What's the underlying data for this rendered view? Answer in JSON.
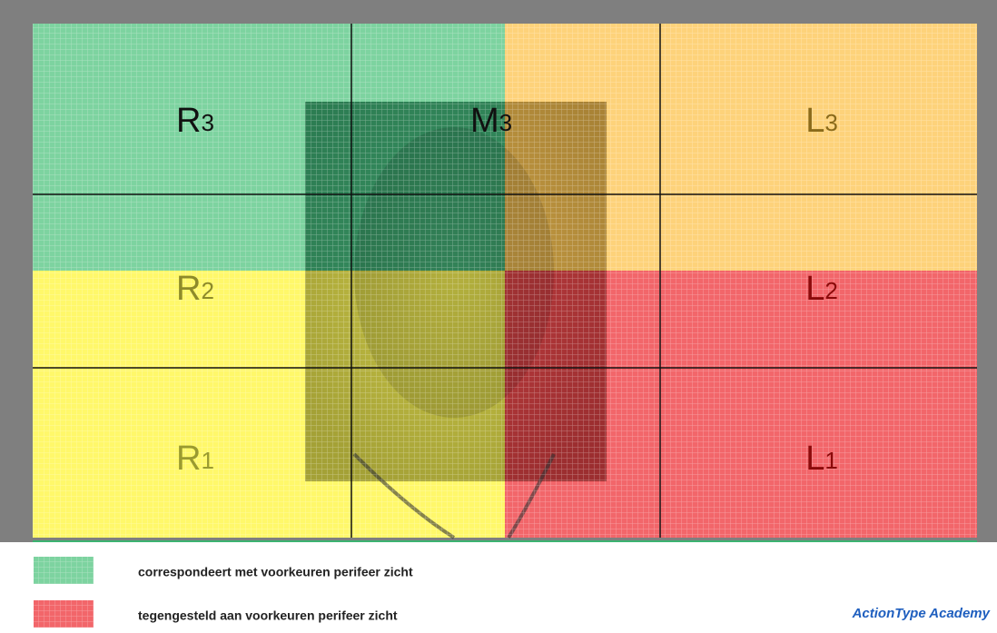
{
  "zones": [
    {
      "letter": "R",
      "sub": "3"
    },
    {
      "letter": "M",
      "sub": "3"
    },
    {
      "letter": "L",
      "sub": "3"
    },
    {
      "letter": "R",
      "sub": "2"
    },
    {
      "letter": "L",
      "sub": "2"
    },
    {
      "letter": "R",
      "sub": "1"
    },
    {
      "letter": "L",
      "sub": "1"
    }
  ],
  "legend": [
    {
      "text": "correspondeert met voorkeuren perifeer zicht"
    },
    {
      "text": "tegengesteld aan voorkeuren perifeer zicht"
    }
  ],
  "brand": "ActionType Academy"
}
